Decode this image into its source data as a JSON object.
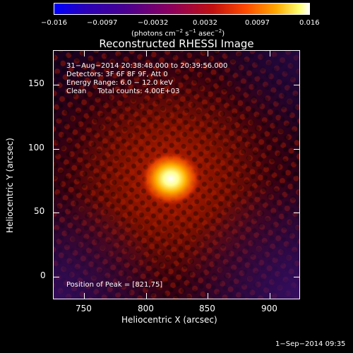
{
  "colorbar": {
    "ticks": [
      "−0.016",
      "−0.0097",
      "−0.0032",
      "0.0032",
      "0.0097",
      "0.016"
    ],
    "unit_text": "(photons cm",
    "unit_exp1": "−2",
    "unit_mid": " s",
    "unit_exp2": "−1",
    "unit_mid2": " asec",
    "unit_exp3": "−2",
    "unit_end": ")"
  },
  "title": "Reconstructed RHESSI Image",
  "info": {
    "line1": "31−Aug−2014 20:38:48.000 to 20:39:56.000",
    "line2": "Detectors: 3F 6F 8F 9F, Att 0",
    "line3": "Energy Range: 6.0 − 12.0 keV",
    "line4": "Clean     Total counts: 4.00E+03"
  },
  "peak_text": "Position of Peak = [821,75]",
  "x_axis": {
    "label": "Heliocentric X (arcsec)",
    "ticks": [
      "750",
      "800",
      "850",
      "900"
    ]
  },
  "y_axis": {
    "label": "Heliocentric Y (arcsec)",
    "ticks": [
      "150",
      "100",
      "50",
      "0"
    ]
  },
  "timestamp": "1−Sep−2014 09:35"
}
